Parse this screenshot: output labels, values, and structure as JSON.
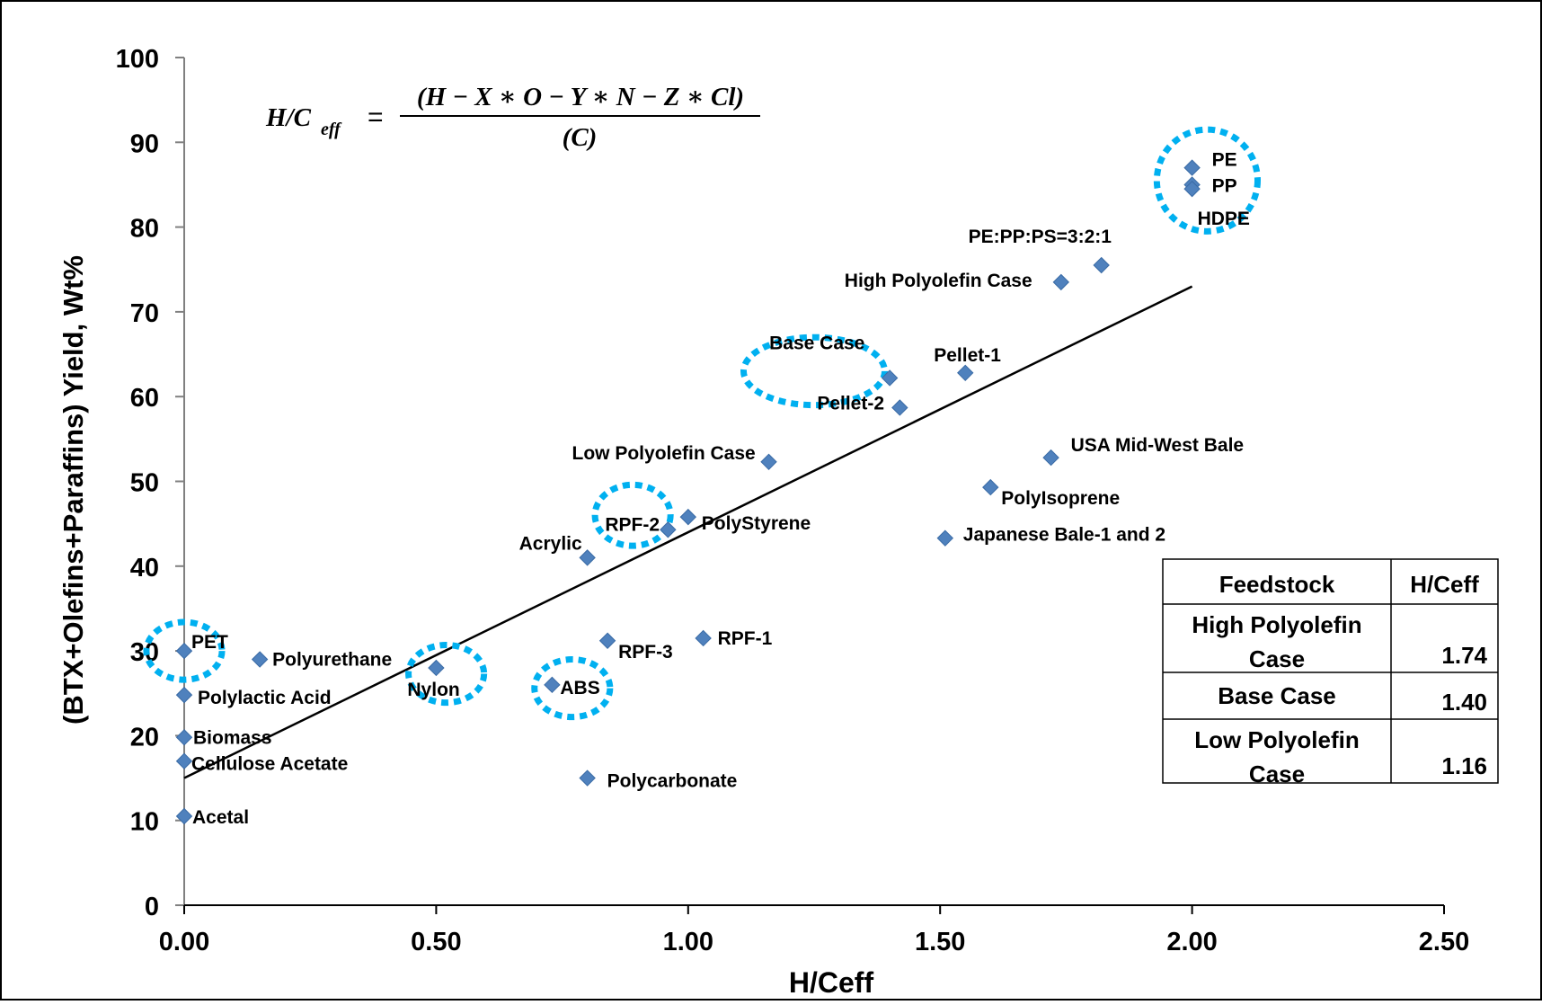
{
  "chart_data": {
    "type": "scatter",
    "xlabel": "H/Ceff",
    "ylabel": "(BTX+Olefins+Paraffins) Yield, Wt%",
    "xlim": [
      0,
      2.5
    ],
    "ylim": [
      0,
      100
    ],
    "x_ticks": [
      "0.00",
      "0.50",
      "1.00",
      "1.50",
      "2.00",
      "2.50"
    ],
    "y_ticks": [
      "0",
      "10",
      "20",
      "30",
      "40",
      "50",
      "60",
      "70",
      "80",
      "90",
      "100"
    ],
    "formula": {
      "lhs": "H/C",
      "lhs_sub": "eff",
      "equals": "=",
      "numerator": "(H − X ∗ O − Y ∗ N − Z ∗ Cl)",
      "denominator": "(C)"
    },
    "marker_color": "#4F81BD",
    "highlight_color": "#00B0F0",
    "points": [
      {
        "label": "PE",
        "x": 2.0,
        "y": 87
      },
      {
        "label": "PP",
        "x": 2.0,
        "y": 85
      },
      {
        "label": "HDPE",
        "x": 2.0,
        "y": 84.5
      },
      {
        "label": "PE:PP:PS=3:2:1",
        "x": 1.82,
        "y": 75.5
      },
      {
        "label": "High Polyolefin Case",
        "x": 1.74,
        "y": 73.5
      },
      {
        "label": "Pellet-1",
        "x": 1.55,
        "y": 62.8
      },
      {
        "label": "Base Case",
        "x": 1.4,
        "y": 62.2
      },
      {
        "label": "Pellet-2",
        "x": 1.42,
        "y": 58.7
      },
      {
        "label": "USA Mid-West Bale",
        "x": 1.72,
        "y": 52.8
      },
      {
        "label": "Low Polyolefin Case",
        "x": 1.16,
        "y": 52.3
      },
      {
        "label": "PolyIsoprene",
        "x": 1.6,
        "y": 49.3
      },
      {
        "label": "PolyStyrene",
        "x": 1.0,
        "y": 45.8
      },
      {
        "label": "RPF-2",
        "x": 0.96,
        "y": 44.3
      },
      {
        "label": "Japanese Bale-1 and 2",
        "x": 1.51,
        "y": 43.3
      },
      {
        "label": "Acrylic",
        "x": 0.8,
        "y": 41
      },
      {
        "label": "RPF-1",
        "x": 1.03,
        "y": 31.5
      },
      {
        "label": "RPF-3",
        "x": 0.84,
        "y": 31.2
      },
      {
        "label": "PET",
        "x": 0.0,
        "y": 30
      },
      {
        "label": "Polyurethane",
        "x": 0.15,
        "y": 29
      },
      {
        "label": "Nylon",
        "x": 0.5,
        "y": 28
      },
      {
        "label": "ABS",
        "x": 0.73,
        "y": 26
      },
      {
        "label": "Polylactic Acid",
        "x": 0.0,
        "y": 24.8
      },
      {
        "label": "Biomass",
        "x": 0.0,
        "y": 19.8
      },
      {
        "label": "Cellulose Acetate",
        "x": 0.0,
        "y": 17
      },
      {
        "label": "Polycarbonate",
        "x": 0.8,
        "y": 15
      },
      {
        "label": "Acetal",
        "x": 0.0,
        "y": 10.5
      }
    ],
    "trendline": {
      "x": [
        0.0,
        2.0
      ],
      "y": [
        15,
        73
      ],
      "color": "#000000"
    },
    "highlights": [
      {
        "label": "PE / PP / HDPE",
        "cx": 2.03,
        "cy": 85.5,
        "rx": 0.1,
        "ry": 6
      },
      {
        "label": "Base Case",
        "cx": 1.25,
        "cy": 63,
        "rx": 0.14,
        "ry": 4
      },
      {
        "label": "RPF-2",
        "cx": 0.89,
        "cy": 46,
        "rx": 0.075,
        "ry": 3.6
      },
      {
        "label": "PET",
        "cx": 0.0,
        "cy": 30,
        "rx": 0.075,
        "ry": 3.4
      },
      {
        "label": "Nylon",
        "cx": 0.52,
        "cy": 27.3,
        "rx": 0.075,
        "ry": 3.4
      },
      {
        "label": "ABS",
        "cx": 0.77,
        "cy": 25.6,
        "rx": 0.075,
        "ry": 3.4
      }
    ],
    "table": {
      "headers": [
        "Feedstock",
        "H/Ceff"
      ],
      "rows": [
        {
          "feedstock": [
            "High Polyolefin",
            "Case"
          ],
          "value": "1.74"
        },
        {
          "feedstock": [
            "Base Case"
          ],
          "value": "1.40"
        },
        {
          "feedstock": [
            "Low Polyolefin",
            "Case"
          ],
          "value": "1.16"
        }
      ]
    }
  }
}
